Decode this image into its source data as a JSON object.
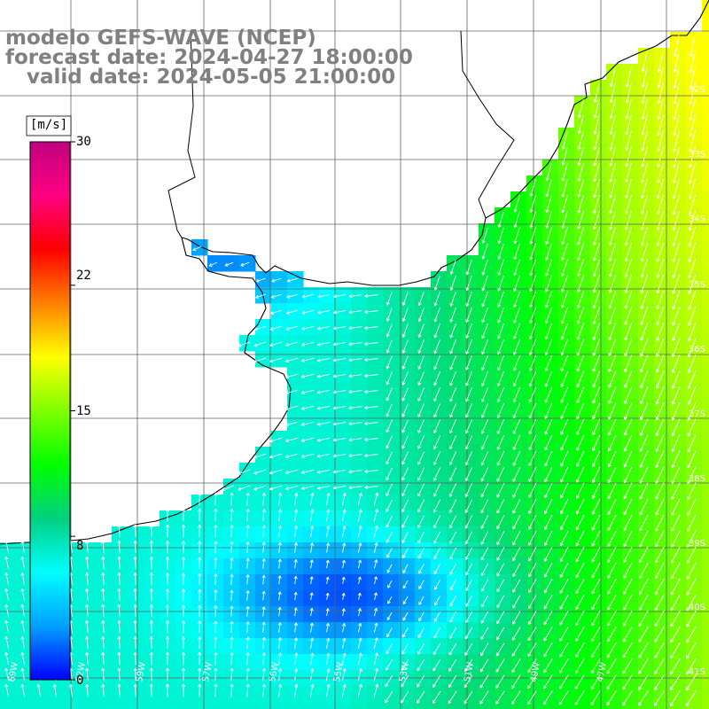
{
  "title": {
    "model": "modelo GEFS-WAVE (NCEP)",
    "forecast": "forecast date: 2024-04-27 18:00:00",
    "valid": "   valid date: 2024-05-05 21:00:00"
  },
  "colorbar": {
    "unit": "[m/s]",
    "ticks": [
      {
        "value": 30,
        "label": "30"
      },
      {
        "value": 22,
        "label": "22"
      },
      {
        "value": 15,
        "label": "15"
      },
      {
        "value": 8,
        "label": "8"
      },
      {
        "value": 0,
        "label": "0"
      }
    ],
    "colors": [
      "#0000ff",
      "#00a0ff",
      "#00ffff",
      "#00d080",
      "#00ff00",
      "#80ff00",
      "#ffff00",
      "#ff8000",
      "#ff0000",
      "#ff0080",
      "#c00080"
    ],
    "range": [
      0,
      30
    ]
  },
  "lat_labels": [
    "32S",
    "33S",
    "34S",
    "35S",
    "36S",
    "37S",
    "38S",
    "39S",
    "40S",
    "41S"
  ],
  "lon_labels": [
    "69W",
    "62W",
    "59W",
    "57W",
    "56W",
    "55W",
    "53W",
    "51W",
    "49W",
    "47W"
  ],
  "field": {
    "variable": "wind speed",
    "units": "m/s"
  }
}
